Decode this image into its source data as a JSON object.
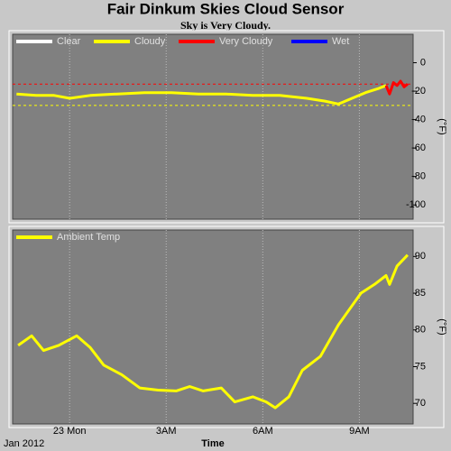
{
  "title": "Fair Dinkum Skies Cloud Sensor",
  "subtitle": "Sky is Very Cloudy.",
  "chart_data": [
    {
      "type": "line",
      "y_label": "(°F)",
      "xlim": [
        -1.77,
        10.67
      ],
      "ylim": [
        -110,
        20
      ],
      "yticks": [
        0,
        -20,
        -40,
        -60,
        -80,
        -100
      ],
      "reference_lines": [
        {
          "value": -15,
          "color": "#ff0000"
        },
        {
          "value": -30,
          "color": "#ffff00"
        }
      ],
      "series": [
        {
          "name": "Clear",
          "color": "#ffffff",
          "x": [],
          "values": []
        },
        {
          "name": "Cloudy",
          "color": "#ffff00",
          "x": [
            -1.65,
            -1.04,
            -0.48,
            0,
            0.64,
            1.48,
            2.32,
            3.17,
            4.0,
            4.85,
            5.69,
            6.53,
            7.37,
            7.93,
            8.35,
            8.77,
            9.19,
            9.61,
            9.83
          ],
          "values": [
            -22,
            -23,
            -23,
            -25,
            -23,
            -22,
            -21,
            -21,
            -22,
            -22,
            -23,
            -23,
            -25,
            -27,
            -29,
            -25,
            -21,
            -18,
            -16
          ]
        },
        {
          "name": "Very Cloudy",
          "color": "#ff0000",
          "x": [
            9.83,
            9.94,
            10.06,
            10.17,
            10.28,
            10.39,
            10.5
          ],
          "values": [
            -16,
            -22,
            -14,
            -16,
            -13,
            -17,
            -15
          ]
        },
        {
          "name": "Wet",
          "color": "#0000ff",
          "x": [],
          "values": []
        }
      ]
    },
    {
      "type": "line",
      "y_label": "(°F)",
      "x_label": "Time",
      "date_label": "Jan 2012",
      "xlim": [
        -1.77,
        10.67
      ],
      "ylim": [
        67.2,
        93.6
      ],
      "xticks": [
        {
          "value": 0,
          "label": "23 Mon"
        },
        {
          "value": 3,
          "label": "3AM"
        },
        {
          "value": 6,
          "label": "6AM"
        },
        {
          "value": 9,
          "label": "9AM"
        }
      ],
      "yticks": [
        70,
        75,
        80,
        85,
        90
      ],
      "series": [
        {
          "name": "Ambient Temp",
          "color": "#ffff00",
          "x": [
            -1.6,
            -1.18,
            -0.81,
            -0.34,
            0.22,
            0.64,
            1.06,
            1.62,
            2.18,
            2.75,
            3.31,
            3.73,
            4.15,
            4.71,
            5.13,
            5.69,
            6.11,
            6.39,
            6.81,
            7.23,
            7.79,
            8.35,
            9.05,
            9.47,
            9.83,
            9.94,
            10.17,
            10.5
          ],
          "values": [
            77.9,
            79.2,
            77.2,
            77.9,
            79.2,
            77.6,
            75.2,
            73.9,
            72.1,
            71.8,
            71.7,
            72.3,
            71.7,
            72.1,
            70.2,
            70.9,
            70.2,
            69.4,
            70.9,
            74.5,
            76.4,
            80.7,
            85.0,
            86.2,
            87.4,
            86.2,
            88.7,
            90.2
          ]
        }
      ]
    }
  ]
}
